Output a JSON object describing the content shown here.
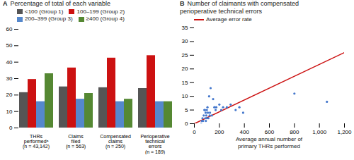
{
  "chart_data": [
    {
      "type": "bar",
      "title": "Percentage of total of each variable",
      "annotations": [
        "A"
      ],
      "categories": [
        "THRs\nperformedᵃ\n(n = 43,142)",
        "Claims\nfiled\n(n = 563)",
        "Compensated\nclaims\n(n = 250)",
        "Perioperative\ntechnical\nerrors\n(n = 189)"
      ],
      "series": [
        {
          "name": "<100 (Group 1)",
          "color": "#555555",
          "values": [
            21.5,
            25.0,
            24.5,
            24.0
          ]
        },
        {
          "name": "100–199 (Group 2)",
          "color": "#cc1111",
          "values": [
            29.5,
            36.5,
            42.5,
            44.0
          ]
        },
        {
          "name": "200–399 (Group 3)",
          "color": "#5588cc",
          "values": [
            16.0,
            17.5,
            16.0,
            16.0
          ]
        },
        {
          "name": "≥400 (Group 4)",
          "color": "#558833",
          "values": [
            33.0,
            21.0,
            17.5,
            16.0
          ]
        }
      ],
      "ylim": [
        0,
        60
      ],
      "yticks": [
        0,
        10,
        20,
        30,
        40,
        50,
        60
      ],
      "legend": "upper left"
    },
    {
      "type": "scatter",
      "title": "Number of claimants with compensated\nperioperative technical errors",
      "annotations": [
        "B"
      ],
      "xlabel": "Average annual number of\nprimary THRs performed",
      "series": [
        {
          "type": "scatter",
          "color": "#4477cc",
          "x": [
            55,
            60,
            65,
            70,
            75,
            80,
            85,
            88,
            90,
            92,
            95,
            98,
            100,
            105,
            108,
            112,
            118,
            122,
            125,
            130,
            140,
            150,
            160,
            170,
            175,
            200,
            215,
            230,
            260,
            290,
            330,
            360,
            390,
            800,
            1060
          ],
          "values": [
            0,
            1,
            2,
            1,
            3,
            5,
            5,
            2,
            4,
            1,
            3,
            2,
            5,
            6,
            4,
            2,
            10,
            3,
            4,
            13,
            3,
            9,
            6,
            5,
            6,
            7,
            5,
            6,
            6,
            7,
            5,
            6,
            4,
            11,
            8
          ]
        },
        {
          "type": "line",
          "name": "Average error rate",
          "color": "#cc1111",
          "x": [
            0,
            1200
          ],
          "values": [
            0,
            26.0
          ]
        }
      ],
      "xlim": [
        0,
        1200
      ],
      "xticks": [
        0,
        200,
        400,
        600,
        800,
        1000,
        1200
      ],
      "ylim": [
        0,
        35
      ],
      "yticks": [
        0,
        5,
        10,
        15,
        20,
        25,
        30,
        35
      ],
      "legend": "upper left"
    }
  ]
}
